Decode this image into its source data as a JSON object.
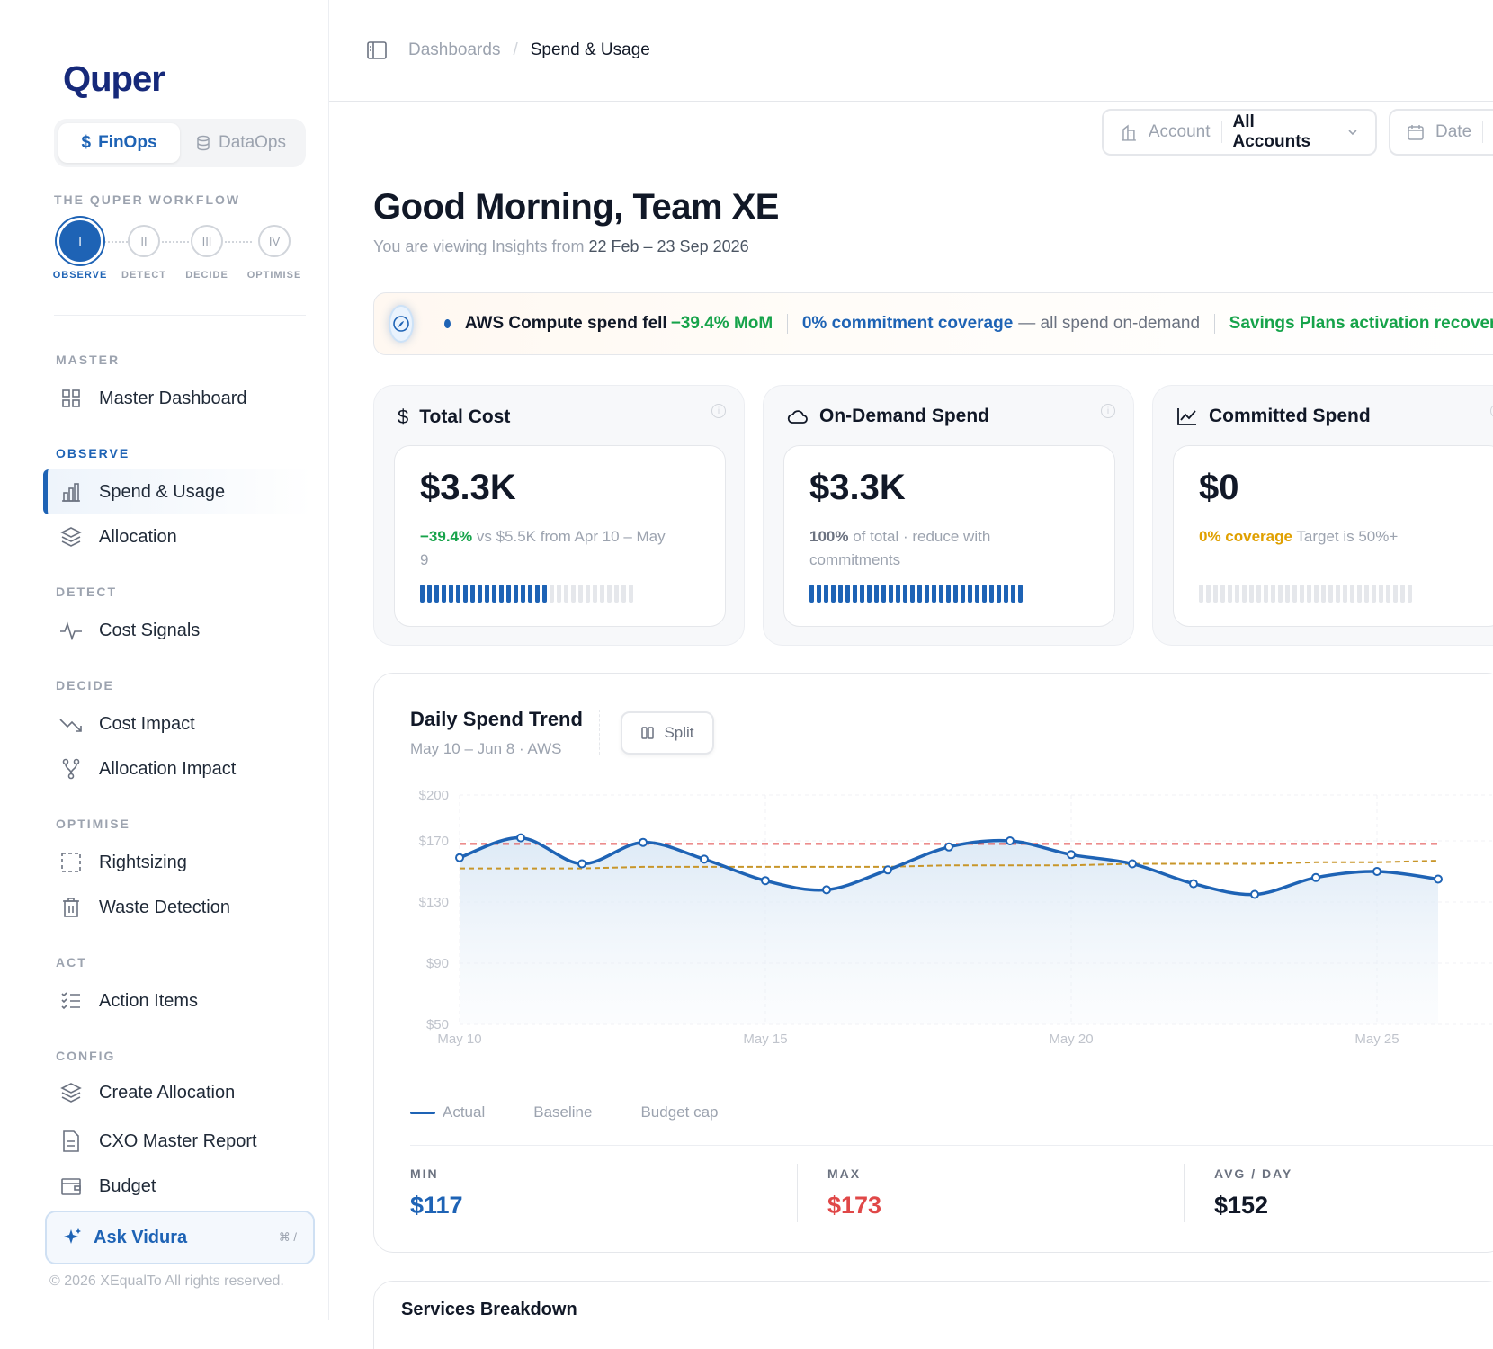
{
  "brand": {
    "name": "Quper"
  },
  "mode_switch": {
    "finops": "FinOps",
    "dataops": "DataOps"
  },
  "workflow": {
    "title": "THE QUPER WORKFLOW",
    "steps": [
      {
        "numeral": "I",
        "label": "OBSERVE"
      },
      {
        "numeral": "II",
        "label": "DETECT"
      },
      {
        "numeral": "III",
        "label": "DECIDE"
      },
      {
        "numeral": "IV",
        "label": "OPTIMISE"
      }
    ]
  },
  "nav": {
    "master": "MASTER",
    "master_dashboard": "Master Dashboard",
    "observe": "OBSERVE",
    "spend_usage": "Spend & Usage",
    "allocation": "Allocation",
    "detect": "DETECT",
    "cost_signals": "Cost Signals",
    "decide": "DECIDE",
    "cost_impact": "Cost Impact",
    "allocation_impact": "Allocation Impact",
    "optimise": "OPTIMISE",
    "rightsizing": "Rightsizing",
    "waste_detection": "Waste Detection",
    "act": "ACT",
    "action_items": "Action Items",
    "config": "CONFIG",
    "create_allocation": "Create Allocation",
    "cxo_master_report": "CXO Master Report",
    "budget": "Budget"
  },
  "ask": {
    "label": "Ask Vidura",
    "shortcut": "⌘ /"
  },
  "footer": {
    "copyright": "© 2026 XEqualTo All rights reserved."
  },
  "breadcrumb": {
    "parent": "Dashboards",
    "separator": "/",
    "current": "Spend & Usage"
  },
  "filters": {
    "account_label": "Account",
    "account_value": "All Accounts",
    "date_label": "Date"
  },
  "greeting": {
    "title": "Good Morning, Team XE",
    "prefix": "You are viewing Insights from",
    "range": "22 Feb – 23 Sep 2026"
  },
  "banner": {
    "part1": "AWS Compute spend fell",
    "part1_value": "−39.4% MoM",
    "part2": "0% commitment coverage",
    "part2_rest": "— all spend on-demand",
    "part3": "Savings Plans activation recovery"
  },
  "kpis": [
    {
      "title": "Total Cost",
      "value": "$3.3K",
      "highlight": "−39.4%",
      "note": " vs $5.5K from Apr 10 – May 9",
      "fill": 0.6
    },
    {
      "title": "On-Demand Spend",
      "value": "$3.3K",
      "highlight": "100%",
      "note": " of total · reduce with commitments",
      "fill": 1.0
    },
    {
      "title": "Committed Spend",
      "value": "$0",
      "highlight": "0% coverage",
      "note": " Target is 50%+",
      "fill": 0.0
    }
  ],
  "trend": {
    "title": "Daily Spend Trend",
    "subtitle": "May 10 – Jun 8 · AWS",
    "split_label": "Split",
    "legend": {
      "actual": "Actual",
      "baseline": "Baseline",
      "budget": "Budget cap"
    },
    "stats": {
      "min_label": "MIN",
      "min_value": "$117",
      "max_label": "MAX",
      "max_value": "$173",
      "avg_label": "AVG / DAY",
      "avg_value": "$152"
    },
    "colors": {
      "actual": "#1e63b5",
      "baseline": "#c8962a",
      "budget": "#e04848"
    }
  },
  "chart_data": {
    "type": "line",
    "x": [
      "May 10",
      "May 11",
      "May 12",
      "May 13",
      "May 14",
      "May 15",
      "May 16",
      "May 17",
      "May 18",
      "May 19",
      "May 20",
      "May 21",
      "May 22",
      "May 23",
      "May 24",
      "May 25",
      "May 26"
    ],
    "x_ticks": [
      "May 10",
      "May 15",
      "May 20",
      "May 25"
    ],
    "y_ticks": [
      "$200",
      "$170",
      "$130",
      "$90",
      "$50"
    ],
    "y_tick_values": [
      200,
      170,
      130,
      90,
      50
    ],
    "ylim": [
      50,
      200
    ],
    "series": [
      {
        "name": "Actual",
        "values": [
          159,
          172,
          155,
          169,
          158,
          144,
          138,
          151,
          166,
          170,
          161,
          155,
          142,
          135,
          146,
          150,
          145
        ]
      },
      {
        "name": "Baseline",
        "values": [
          152,
          152,
          152,
          153,
          153,
          153,
          153,
          153,
          154,
          154,
          154,
          155,
          155,
          155,
          156,
          156,
          157
        ]
      },
      {
        "name": "Budget cap",
        "values": [
          168,
          168,
          168,
          168,
          168,
          168,
          168,
          168,
          168,
          168,
          168,
          168,
          168,
          168,
          168,
          168,
          168
        ]
      }
    ],
    "grid": true,
    "legend": "bottom-left"
  },
  "services": {
    "title": "Services Breakdown"
  }
}
